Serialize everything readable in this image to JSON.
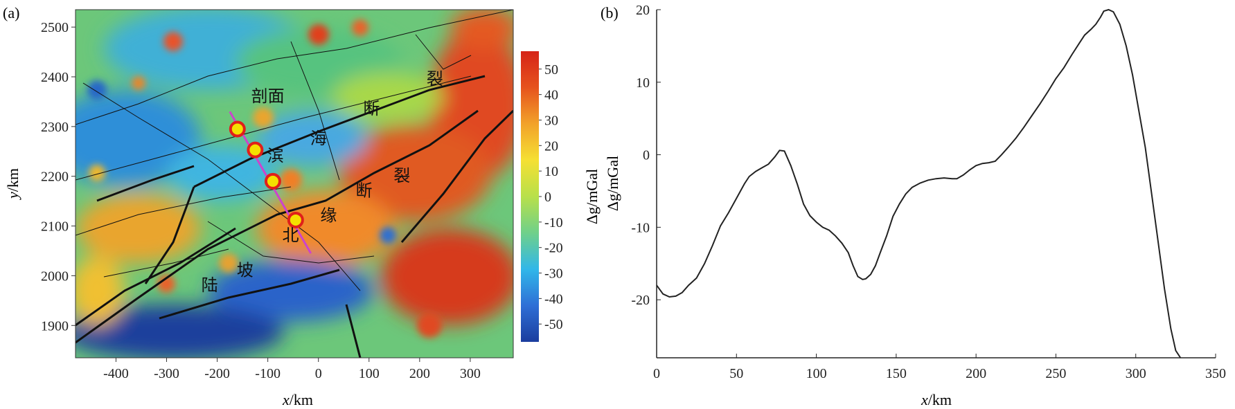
{
  "chart_data": [
    {
      "panel_label": "(a)",
      "type": "heatmap",
      "xlabel_var": "x",
      "xlabel_unit": "/km",
      "ylabel_var": "y",
      "ylabel_unit": "/km",
      "xlim": [
        -480,
        385
      ],
      "ylim": [
        1835,
        2535
      ],
      "xticks": [
        -400,
        -300,
        -200,
        -100,
        0,
        100,
        200,
        300
      ],
      "yticks": [
        1900,
        2000,
        2100,
        2200,
        2300,
        2400,
        2500
      ],
      "colorbar": {
        "label": "Δg/mGal",
        "range": [
          -57,
          57
        ],
        "ticks": [
          -50,
          -40,
          -30,
          -20,
          -10,
          0,
          10,
          20,
          30,
          40,
          50
        ],
        "colors": [
          "#1b3d9e",
          "#2e6fd6",
          "#31b7e9",
          "#6fd08a",
          "#b8e04a",
          "#f5e033",
          "#f2a22a",
          "#e6531d",
          "#d62418"
        ]
      },
      "profile_line": {
        "x": [
          -175,
          -15
        ],
        "y": [
          2330,
          2045
        ],
        "color": "#cc44cc"
      },
      "markers": [
        {
          "x": -160,
          "y": 2295
        },
        {
          "x": -125,
          "y": 2253
        },
        {
          "x": -90,
          "y": 2190
        },
        {
          "x": -45,
          "y": 2112
        }
      ],
      "annotations": [
        {
          "text": "剖面",
          "x": -100,
          "y": 2350
        },
        {
          "text": "断",
          "x": 105,
          "y": 2325
        },
        {
          "text": "裂",
          "x": 230,
          "y": 2385
        },
        {
          "text": "海",
          "x": 0,
          "y": 2265
        },
        {
          "text": "滨",
          "x": -85,
          "y": 2230
        },
        {
          "text": "断",
          "x": 90,
          "y": 2160
        },
        {
          "text": "裂",
          "x": 165,
          "y": 2190
        },
        {
          "text": "缘",
          "x": 20,
          "y": 2110
        },
        {
          "text": "北",
          "x": -55,
          "y": 2070
        },
        {
          "text": "陆",
          "x": -215,
          "y": 1970
        },
        {
          "text": "坡",
          "x": -145,
          "y": 2000
        }
      ]
    },
    {
      "panel_label": "(b)",
      "type": "line",
      "xlabel_var": "x",
      "xlabel_unit": "/km",
      "ylabel": "Δg/mGal",
      "xlim": [
        0,
        350
      ],
      "ylim": [
        -28,
        20
      ],
      "xticks": [
        0,
        50,
        100,
        150,
        200,
        250,
        300,
        350
      ],
      "yticks": [
        -20,
        -10,
        0,
        10,
        20
      ],
      "series": [
        {
          "x": [
            0,
            4,
            8,
            12,
            16,
            20,
            25,
            30,
            35,
            40,
            45,
            50,
            55,
            58,
            62,
            66,
            70,
            74,
            77,
            80,
            84,
            88,
            92,
            96,
            100,
            104,
            108,
            112,
            116,
            120,
            123,
            126,
            129,
            131,
            134,
            137,
            140,
            144,
            148,
            152,
            156,
            160,
            165,
            170,
            175,
            180,
            185,
            188,
            192,
            196,
            200,
            204,
            208,
            212,
            216,
            220,
            225,
            230,
            235,
            240,
            245,
            250,
            255,
            260,
            265,
            268,
            272,
            275,
            278,
            280,
            283,
            286,
            290,
            294,
            298,
            302,
            306,
            310,
            314,
            318,
            322,
            325,
            328
          ],
          "y": [
            -18,
            -19.2,
            -19.6,
            -19.5,
            -19,
            -18,
            -17,
            -15,
            -12.5,
            -9.8,
            -8,
            -6,
            -4,
            -3,
            -2.3,
            -1.8,
            -1.3,
            -0.3,
            0.6,
            0.5,
            -1.5,
            -4,
            -6.8,
            -8.4,
            -9.3,
            -10,
            -10.4,
            -11.2,
            -12.2,
            -13.5,
            -15.3,
            -16.8,
            -17.2,
            -17.1,
            -16.5,
            -15.3,
            -13.5,
            -11.2,
            -8.5,
            -6.8,
            -5.4,
            -4.5,
            -3.9,
            -3.5,
            -3.3,
            -3.2,
            -3.3,
            -3.3,
            -2.8,
            -2.1,
            -1.5,
            -1.2,
            -1.1,
            -0.9,
            0,
            1,
            2.3,
            3.8,
            5.4,
            7,
            8.7,
            10.5,
            12,
            13.8,
            15.5,
            16.5,
            17.3,
            18,
            19,
            19.8,
            20,
            19.7,
            18,
            15,
            11,
            6,
            1,
            -5.5,
            -12,
            -18.5,
            -24,
            -27,
            -29
          ]
        }
      ]
    }
  ]
}
